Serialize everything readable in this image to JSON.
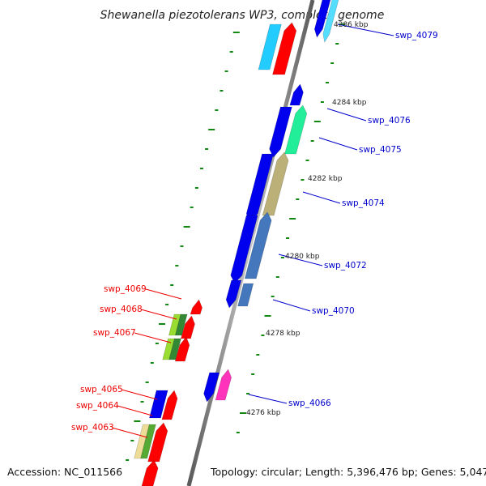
{
  "title": "Shewanella piezotolerans WP3, complete genome",
  "footer": {
    "accession": "Accession: NC_011566",
    "topology": "Topology: circular; Length: 5,396,476 bp; Genes: 5,047"
  },
  "colors": {
    "backbone": "#808080",
    "tick_green": "#118811",
    "label_blue": "#0000cc",
    "label_red": "#ee0000"
  },
  "kbp_markers": [
    "4286 kbp",
    "4284 kbp",
    "4282 kbp",
    "4280 kbp",
    "4278 kbp",
    "4276 kbp"
  ],
  "right_labels": [
    "swp_4079",
    "swp_4076",
    "swp_4075",
    "swp_4074",
    "swp_4072",
    "swp_4070",
    "swp_4066"
  ],
  "left_labels": [
    "swp_4069",
    "swp_4068",
    "swp_4067",
    "swp_4065",
    "swp_4064",
    "swp_4063"
  ]
}
